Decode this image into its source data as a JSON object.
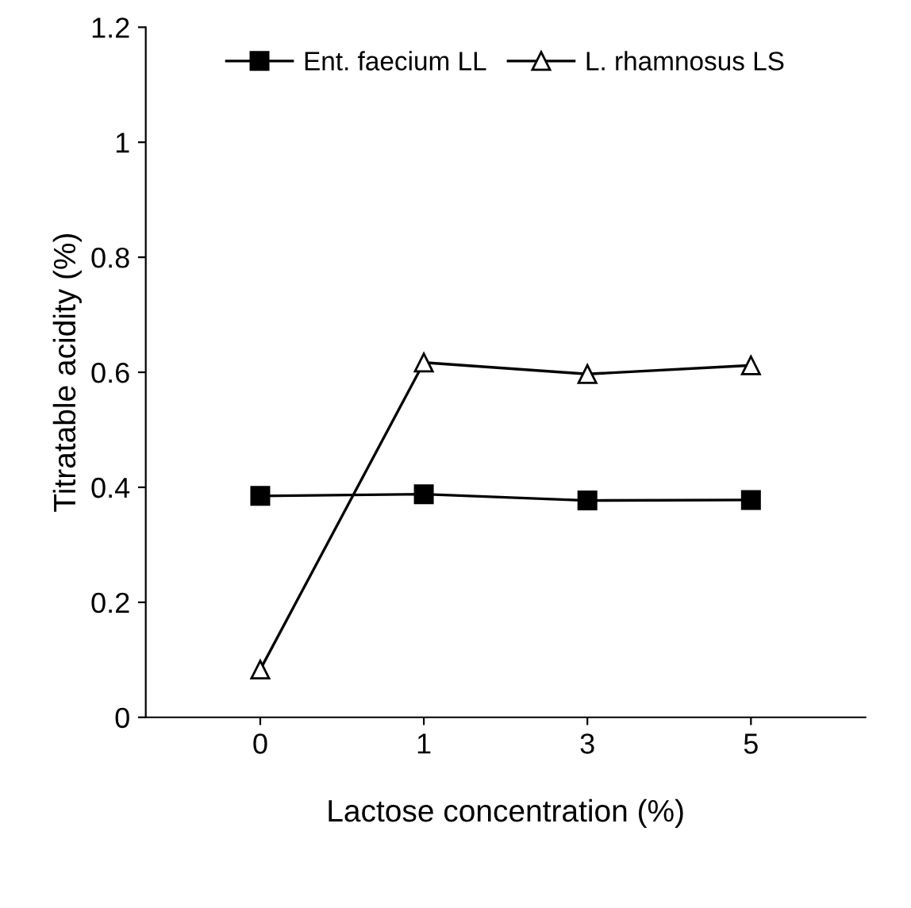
{
  "chart_data": {
    "type": "line",
    "xlabel": "Lactose concentration (%)",
    "ylabel": "Titratable acidity (%)",
    "categories": [
      "0",
      "1",
      "3",
      "5"
    ],
    "series": [
      {
        "name": "Ent. faecium LL",
        "color": "#000000",
        "marker": "square",
        "values": [
          0.385,
          0.388,
          0.377,
          0.378
        ]
      },
      {
        "name": "L. rhamnosus LS",
        "color": "#000000",
        "marker": "triangle",
        "values": [
          0.083,
          0.617,
          0.597,
          0.612
        ]
      }
    ],
    "ylim": [
      0,
      1.2
    ],
    "yticks": [
      0,
      0.2,
      0.4,
      0.6,
      0.8,
      1,
      1.2
    ],
    "grid": false,
    "legend": "top",
    "line_style": "solid"
  }
}
